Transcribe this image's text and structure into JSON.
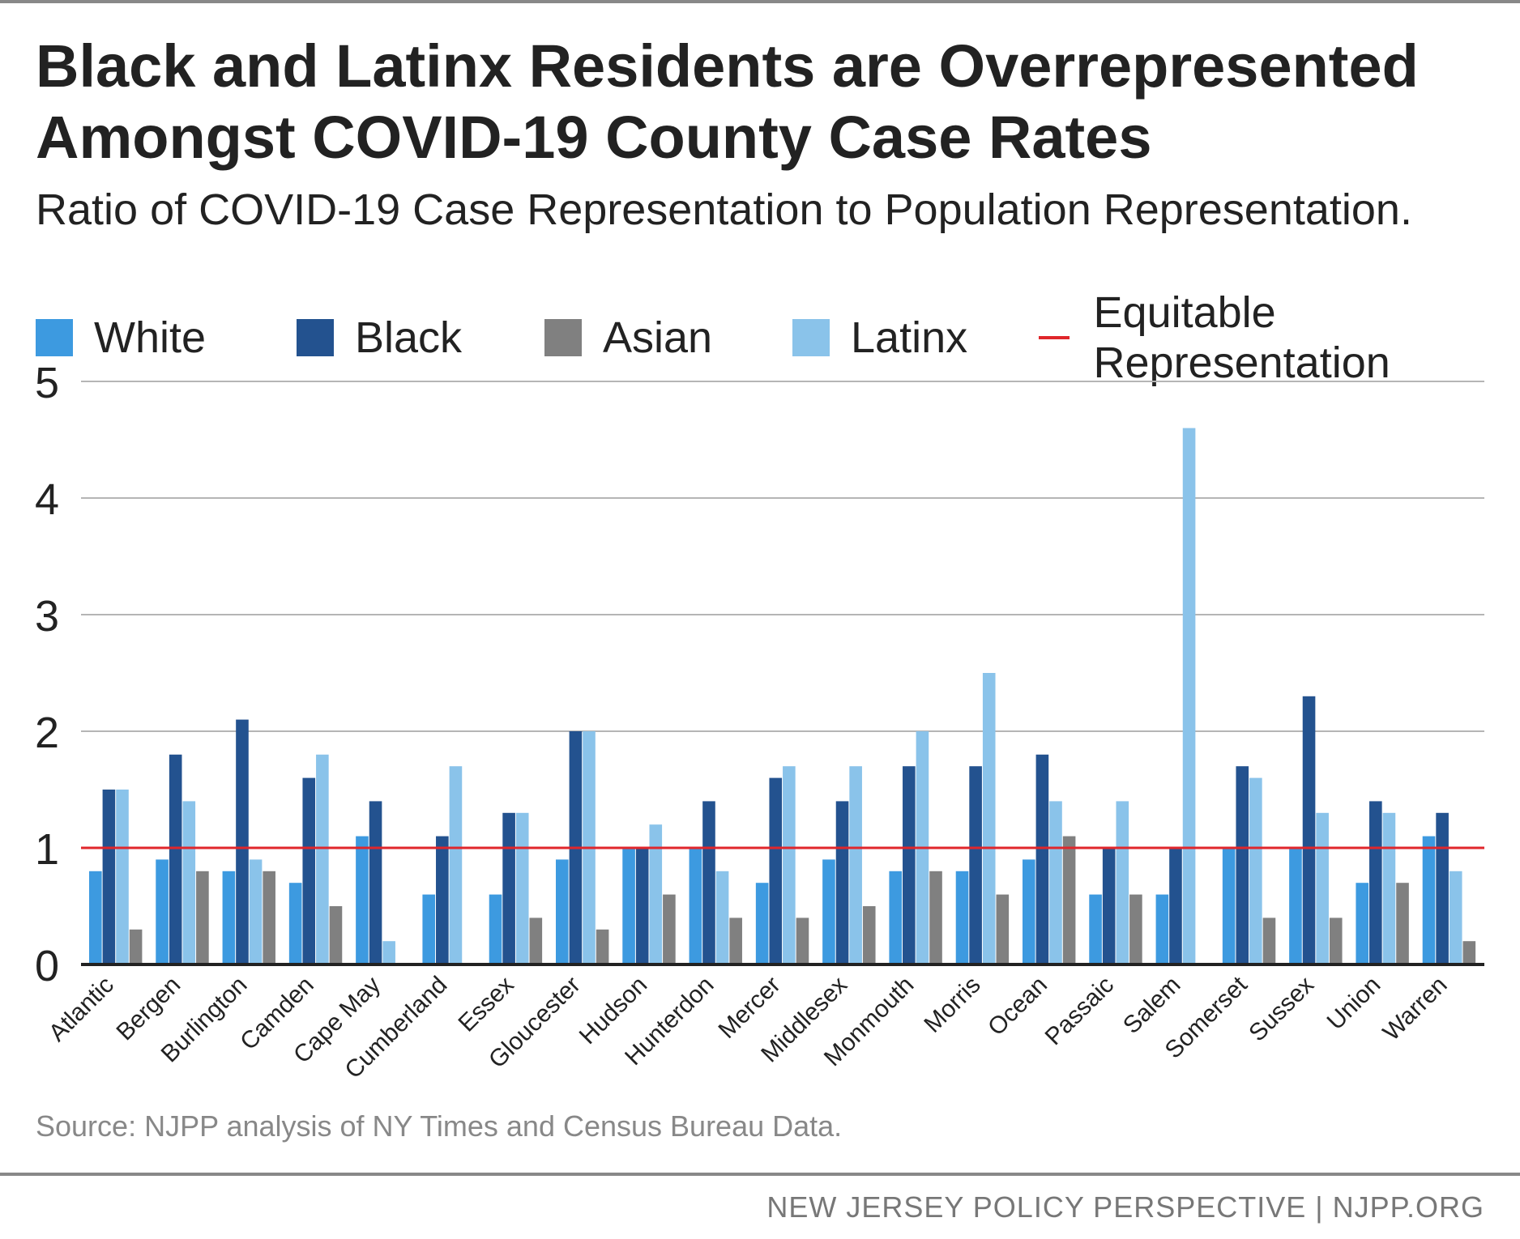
{
  "title": "Black and Latinx Residents are Overrepresented Amongst COVID-19 County Case Rates",
  "subtitle": "Ratio of COVID-19 Case Representation to Population Representation.",
  "legend": [
    {
      "label": "White",
      "color": "#3d9ae0",
      "kind": "bar"
    },
    {
      "label": "Black",
      "color": "#23528f",
      "kind": "bar"
    },
    {
      "label": "Asian",
      "color": "#808080",
      "kind": "bar"
    },
    {
      "label": "Latinx",
      "color": "#8ac3ea",
      "kind": "bar"
    },
    {
      "label": "Equitable Representation",
      "color": "#e0262b",
      "kind": "line"
    }
  ],
  "source": "Source: NJPP analysis of NY Times and Census Bureau Data.",
  "footer": "NEW JERSEY POLICY PERSPECTIVE | NJPP.ORG",
  "chart_data": {
    "type": "bar",
    "title": "Black and Latinx Residents are Overrepresented Amongst COVID-19 County Case Rates",
    "subtitle": "Ratio of COVID-19 Case Representation to Population Representation.",
    "xlabel": "",
    "ylabel": "",
    "ylim": [
      0,
      5
    ],
    "yticks": [
      "0",
      "1",
      "2",
      "3",
      "4",
      "5"
    ],
    "grid": true,
    "legend_position": "top",
    "categories": [
      "Atlantic",
      "Bergen",
      "Burlington",
      "Camden",
      "Cape May",
      "Cumberland",
      "Essex",
      "Gloucester",
      "Hudson",
      "Hunterdon",
      "Mercer",
      "Middlesex",
      "Monmouth",
      "Morris",
      "Ocean",
      "Passaic",
      "Salem",
      "Somerset",
      "Sussex",
      "Union",
      "Warren"
    ],
    "series": [
      {
        "name": "White",
        "color": "#3d9ae0",
        "values": [
          0.8,
          0.9,
          0.8,
          0.7,
          1.1,
          0.6,
          0.6,
          0.9,
          1.0,
          1.0,
          0.7,
          0.9,
          0.8,
          0.8,
          0.9,
          0.6,
          0.6,
          1.0,
          1.0,
          0.7,
          1.1
        ]
      },
      {
        "name": "Black",
        "color": "#23528f",
        "values": [
          1.5,
          1.8,
          2.1,
          1.6,
          1.4,
          1.1,
          1.3,
          2.0,
          1.0,
          1.4,
          1.6,
          1.4,
          1.7,
          1.7,
          1.8,
          1.0,
          1.0,
          1.7,
          2.3,
          1.4,
          1.3
        ]
      },
      {
        "name": "Latinx",
        "color": "#8ac3ea",
        "values": [
          1.5,
          1.4,
          0.9,
          1.8,
          0.2,
          1.7,
          1.3,
          2.0,
          1.2,
          0.8,
          1.7,
          1.7,
          2.0,
          2.5,
          1.4,
          1.4,
          4.6,
          1.6,
          1.3,
          1.3,
          0.8
        ]
      },
      {
        "name": "Asian",
        "color": "#808080",
        "values": [
          0.3,
          0.8,
          0.8,
          0.5,
          0,
          0,
          0.4,
          0.3,
          0.6,
          0.4,
          0.4,
          0.5,
          0.8,
          0.6,
          1.1,
          0.6,
          0,
          0.4,
          0.4,
          0.7,
          0.2
        ]
      }
    ],
    "reference_line": {
      "name": "Equitable Representation",
      "value": 1,
      "color": "#e0262b"
    }
  }
}
